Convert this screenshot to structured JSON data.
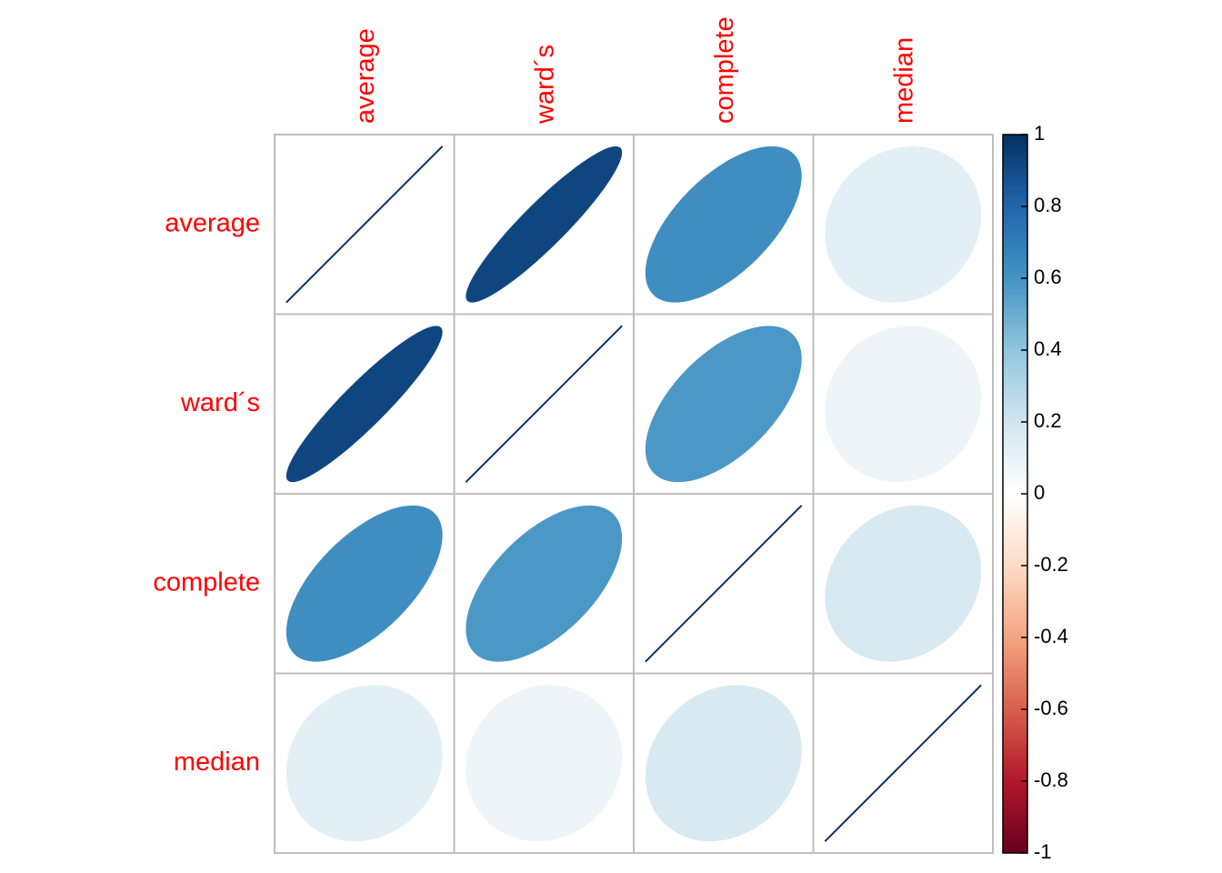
{
  "chart_data": {
    "type": "heatmap",
    "method": "ellipse",
    "variables": [
      "average",
      "ward´s",
      "complete",
      "median"
    ],
    "matrix": [
      [
        1.0,
        0.92,
        0.62,
        0.12
      ],
      [
        0.92,
        1.0,
        0.58,
        0.08
      ],
      [
        0.62,
        0.58,
        1.0,
        0.17
      ],
      [
        0.12,
        0.08,
        0.17,
        1.0
      ]
    ],
    "colorbar": {
      "range": [
        -1,
        1
      ],
      "ticks": [
        "1",
        "0.8",
        "0.6",
        "0.4",
        "0.2",
        "0",
        "-0.2",
        "-0.4",
        "-0.6",
        "-0.8",
        "-1"
      ],
      "tick_values": [
        1,
        0.8,
        0.6,
        0.4,
        0.2,
        0,
        -0.2,
        -0.4,
        -0.6,
        -0.8,
        -1
      ],
      "colors": [
        "#67001F",
        "#B2182B",
        "#D6604D",
        "#F4A582",
        "#FDDBC7",
        "#FFFFFF",
        "#D1E5F0",
        "#92C5DE",
        "#4393C3",
        "#2166AC",
        "#053061"
      ]
    },
    "label_color": "#ff0000",
    "grid_color": "#bebebe"
  }
}
